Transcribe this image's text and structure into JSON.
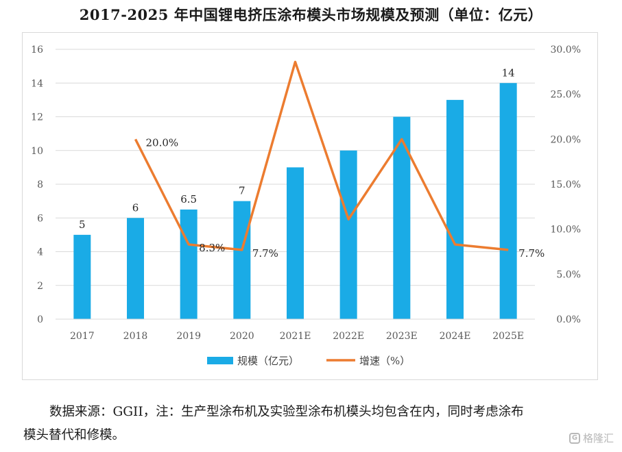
{
  "title": "2017-2025 年中国锂电挤压涂布模头市场规模及预测（单位：亿元）",
  "note": {
    "line1": "数据来源：GGII，注：生产型涂布机及实验型涂布机模头均包含在内，同时考虑涂布",
    "line2": "模头替代和修模。"
  },
  "watermark": {
    "icon": "G",
    "text": "格隆汇"
  },
  "colors": {
    "bar": "#1aabe6",
    "line": "#ec7c30",
    "grid": "#d9d9d9",
    "axis": "#595959"
  },
  "chart_data": {
    "type": "bar",
    "categories": [
      "2017",
      "2018",
      "2019",
      "2020",
      "2021E",
      "2022E",
      "2023E",
      "2024E",
      "2025E"
    ],
    "series": [
      {
        "name": "规模（亿元）",
        "type": "bar",
        "axis": "left",
        "values": [
          5,
          6,
          6.5,
          7,
          9,
          10,
          12,
          13,
          14
        ],
        "labels": [
          "5",
          "6",
          "6.5",
          "7",
          "",
          "",
          "",
          "",
          "14"
        ]
      },
      {
        "name": "增速（%）",
        "type": "line",
        "axis": "right",
        "values": [
          null,
          20.0,
          8.3,
          7.7,
          28.6,
          11.1,
          20.0,
          8.3,
          7.7
        ],
        "labels": [
          "",
          "20.0%",
          "8.3%",
          "7.7%",
          "",
          "",
          "",
          "",
          "7.7%"
        ]
      }
    ],
    "left_axis": {
      "ylim": [
        0,
        16
      ],
      "ticks": [
        "0",
        "2",
        "4",
        "6",
        "8",
        "10",
        "12",
        "14",
        "16"
      ]
    },
    "right_axis": {
      "ylim": [
        0,
        30
      ],
      "ticks": [
        "0.0%",
        "5.0%",
        "10.0%",
        "15.0%",
        "20.0%",
        "25.0%",
        "30.0%"
      ]
    },
    "grid": true,
    "legend": "bottom"
  }
}
